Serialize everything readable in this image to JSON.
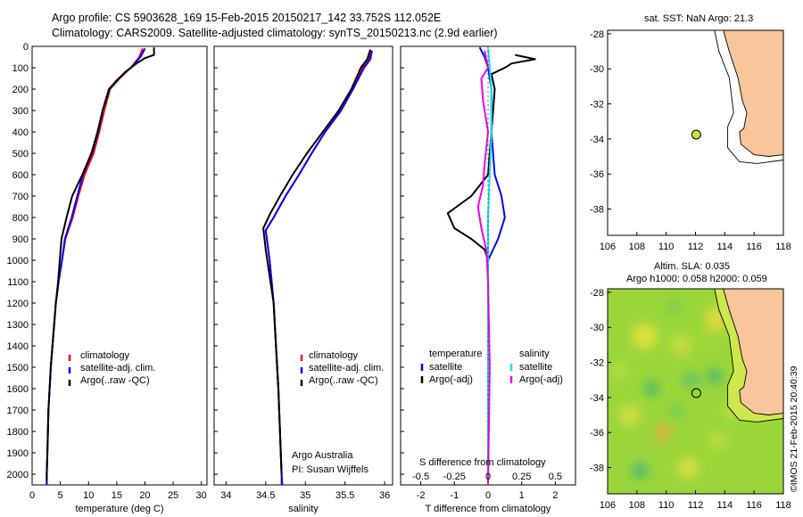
{
  "header": {
    "line1": "Argo profile: CS 5903628_169 15-Feb-2015 20150217_142 33.752S 112.052E",
    "line2": "Climatology: CARS2009. Satellite-adjusted climatology: synTS_20150213.nc (2.9d earlier)"
  },
  "colors": {
    "climatology": "#ff0000",
    "satellite": "#0000ff",
    "argo": "#000000",
    "satellite_diff": "#00e5ee",
    "argo_sal_diff": "#ee00ee",
    "land": "#f9c59a",
    "sst_marker": "#c8e635"
  },
  "chart_data": [
    {
      "id": "temperature",
      "type": "line",
      "xlabel": "temperature (deg C)",
      "xlim": [
        0,
        31
      ],
      "ylim": [
        2050,
        0
      ],
      "xticks": [
        "0",
        "5",
        "10",
        "15",
        "20",
        "25",
        "30"
      ],
      "yticks": [
        "0",
        "100",
        "200",
        "300",
        "400",
        "500",
        "600",
        "700",
        "800",
        "900",
        "1000",
        "1100",
        "1200",
        "1300",
        "1400",
        "1500",
        "1600",
        "1700",
        "1800",
        "1900",
        "2000"
      ],
      "legend": [
        "climatology",
        "satellite-adj. clim.",
        "Argo(..raw -QC)"
      ],
      "series": [
        {
          "name": "climatology",
          "color": "#ff0000",
          "points": [
            [
              19.6,
              10
            ],
            [
              19.0,
              50
            ],
            [
              17.5,
              100
            ],
            [
              15.5,
              150
            ],
            [
              13.8,
              200
            ],
            [
              12.8,
              300
            ],
            [
              11.9,
              400
            ],
            [
              10.9,
              500
            ],
            [
              9.3,
              600
            ],
            [
              8.2,
              700
            ],
            [
              7.2,
              800
            ],
            [
              5.9,
              900
            ],
            [
              5.3,
              1000
            ],
            [
              4.7,
              1100
            ],
            [
              4.2,
              1200
            ],
            [
              3.9,
              1300
            ],
            [
              3.6,
              1400
            ],
            [
              3.3,
              1500
            ],
            [
              3.1,
              1600
            ],
            [
              2.9,
              1700
            ],
            [
              2.8,
              1800
            ],
            [
              2.7,
              1900
            ],
            [
              2.6,
              2000
            ],
            [
              2.6,
              2050
            ]
          ]
        },
        {
          "name": "satellite-adj. clim.",
          "color": "#0000ff",
          "points": [
            [
              20.0,
              10
            ],
            [
              19.2,
              50
            ],
            [
              17.5,
              100
            ],
            [
              15.3,
              150
            ],
            [
              13.6,
              200
            ],
            [
              12.5,
              300
            ],
            [
              11.7,
              400
            ],
            [
              10.6,
              500
            ],
            [
              9.0,
              600
            ],
            [
              8.0,
              700
            ],
            [
              7.0,
              800
            ],
            [
              5.8,
              900
            ],
            [
              5.3,
              1000
            ],
            [
              4.7,
              1100
            ],
            [
              4.2,
              1200
            ],
            [
              3.9,
              1300
            ],
            [
              3.6,
              1400
            ],
            [
              3.3,
              1500
            ],
            [
              3.1,
              1600
            ],
            [
              2.9,
              1700
            ],
            [
              2.8,
              1800
            ],
            [
              2.7,
              1900
            ],
            [
              2.6,
              2000
            ],
            [
              2.6,
              2050
            ]
          ]
        },
        {
          "name": "Argo(..raw -QC)",
          "color": "#000000",
          "points": [
            [
              21.6,
              5
            ],
            [
              21.6,
              40
            ],
            [
              20.0,
              55
            ],
            [
              18.5,
              80
            ],
            [
              16.5,
              120
            ],
            [
              14.7,
              170
            ],
            [
              13.7,
              200
            ],
            [
              12.5,
              300
            ],
            [
              11.6,
              400
            ],
            [
              10.5,
              500
            ],
            [
              8.9,
              600
            ],
            [
              7.1,
              700
            ],
            [
              6.1,
              800
            ],
            [
              5.2,
              900
            ],
            [
              4.9,
              1000
            ],
            [
              4.6,
              1100
            ],
            [
              4.2,
              1200
            ],
            [
              3.9,
              1300
            ],
            [
              3.6,
              1400
            ],
            [
              3.3,
              1500
            ],
            [
              3.1,
              1600
            ],
            [
              2.9,
              1700
            ],
            [
              2.8,
              1800
            ],
            [
              2.7,
              1900
            ],
            [
              2.6,
              2000
            ],
            [
              2.6,
              2030
            ]
          ]
        }
      ]
    },
    {
      "id": "salinity",
      "type": "line",
      "xlabel": "salinity",
      "xlim": [
        33.85,
        36.1
      ],
      "ylim": [
        2050,
        0
      ],
      "xticks": [
        "34",
        "34.5",
        "35",
        "35.5",
        "36"
      ],
      "legend": [
        "climatology",
        "satellite-adj. clim.",
        "Argo(..raw -QC)"
      ],
      "annotation": [
        "Argo Australia",
        "PI: Susan Wijffels"
      ],
      "series": [
        {
          "name": "climatology",
          "color": "#ff0000",
          "points": [
            [
              35.82,
              20
            ],
            [
              35.8,
              60
            ],
            [
              35.72,
              100
            ],
            [
              35.6,
              200
            ],
            [
              35.45,
              300
            ],
            [
              35.25,
              400
            ],
            [
              35.08,
              500
            ],
            [
              34.92,
              600
            ],
            [
              34.75,
              700
            ],
            [
              34.6,
              800
            ],
            [
              34.5,
              860
            ],
            [
              34.55,
              1000
            ],
            [
              34.6,
              1200
            ],
            [
              34.63,
              1400
            ],
            [
              34.66,
              1600
            ],
            [
              34.68,
              1800
            ],
            [
              34.7,
              2000
            ],
            [
              34.7,
              2050
            ]
          ]
        },
        {
          "name": "satellite-adj. clim.",
          "color": "#0000ff",
          "points": [
            [
              35.84,
              20
            ],
            [
              35.82,
              60
            ],
            [
              35.74,
              100
            ],
            [
              35.6,
              200
            ],
            [
              35.45,
              300
            ],
            [
              35.25,
              400
            ],
            [
              35.08,
              500
            ],
            [
              34.92,
              600
            ],
            [
              34.75,
              700
            ],
            [
              34.6,
              800
            ],
            [
              34.5,
              860
            ],
            [
              34.55,
              1000
            ],
            [
              34.6,
              1200
            ],
            [
              34.63,
              1400
            ],
            [
              34.66,
              1600
            ],
            [
              34.68,
              1800
            ],
            [
              34.7,
              2000
            ],
            [
              34.71,
              2050
            ]
          ]
        },
        {
          "name": "Argo(..raw -QC)",
          "color": "#000000",
          "points": [
            [
              35.82,
              15
            ],
            [
              35.78,
              60
            ],
            [
              35.7,
              100
            ],
            [
              35.58,
              200
            ],
            [
              35.42,
              300
            ],
            [
              35.22,
              400
            ],
            [
              35.02,
              500
            ],
            [
              34.84,
              600
            ],
            [
              34.68,
              700
            ],
            [
              34.56,
              780
            ],
            [
              34.47,
              850
            ],
            [
              34.5,
              950
            ],
            [
              34.56,
              1100
            ],
            [
              34.6,
              1200
            ],
            [
              34.63,
              1400
            ],
            [
              34.66,
              1600
            ],
            [
              34.68,
              1800
            ],
            [
              34.7,
              2000
            ]
          ]
        }
      ]
    },
    {
      "id": "difference",
      "type": "line",
      "xlabel": "T difference from climatology",
      "xlabel2": "S difference from climatology",
      "xlim": [
        -2.6,
        2.6
      ],
      "ylim": [
        2050,
        0
      ],
      "xticks": [
        "-2",
        "-1",
        "0",
        "1",
        "2"
      ],
      "xticks2": [
        "-0.5",
        "-0.25",
        "0",
        "0.25",
        "0.5"
      ],
      "legend_headers": [
        "temperature",
        "salinity"
      ],
      "legend_left": [
        "satellite",
        "Argo(-adj)"
      ],
      "legend_right": [
        "satellite",
        "Argo(-adj)"
      ],
      "series": [
        {
          "name": "temperature satellite",
          "color": "#0000ff",
          "points": [
            [
              -0.25,
              5
            ],
            [
              -0.1,
              50
            ],
            [
              0,
              100
            ],
            [
              0.1,
              200
            ],
            [
              0.1,
              400
            ],
            [
              0.2,
              600
            ],
            [
              0.4,
              700
            ],
            [
              0.5,
              800
            ],
            [
              0.3,
              900
            ],
            [
              0,
              1000
            ],
            [
              0,
              2050
            ]
          ]
        },
        {
          "name": "temperature Argo(-adj)",
          "color": "#000000",
          "points": [
            [
              0.8,
              40
            ],
            [
              1.4,
              60
            ],
            [
              0.7,
              80
            ],
            [
              0.5,
              100
            ],
            [
              0.1,
              130
            ],
            [
              0.2,
              200
            ],
            [
              0.1,
              400
            ],
            [
              0,
              600
            ],
            [
              -0.5,
              700
            ],
            [
              -1.2,
              780
            ],
            [
              -1.0,
              850
            ],
            [
              -0.5,
              900
            ],
            [
              -0.1,
              950
            ],
            [
              0,
              1000
            ],
            [
              0,
              2040
            ]
          ]
        },
        {
          "name": "salinity satellite",
          "color": "#00e5ee",
          "points": [
            [
              0.0,
              10
            ],
            [
              0.05,
              100
            ],
            [
              0.1,
              200
            ],
            [
              0.1,
              400
            ],
            [
              0.05,
              600
            ],
            [
              0,
              800
            ],
            [
              0,
              2050
            ]
          ]
        },
        {
          "name": "salinity Argo(-adj)",
          "color": "#ee00ee",
          "points": [
            [
              -0.1,
              20
            ],
            [
              0.0,
              100
            ],
            [
              -0.2,
              150
            ],
            [
              -0.15,
              250
            ],
            [
              0.0,
              400
            ],
            [
              -0.1,
              550
            ],
            [
              -0.15,
              650
            ],
            [
              -0.3,
              750
            ],
            [
              -0.2,
              850
            ],
            [
              -0.05,
              950
            ],
            [
              0,
              1100
            ],
            [
              0.05,
              1500
            ],
            [
              0,
              2050
            ]
          ]
        }
      ]
    }
  ],
  "map_sst": {
    "title": "sat. SST: NaN Argo: 21.3",
    "xticks": [
      "106",
      "108",
      "110",
      "112",
      "114",
      "116",
      "118"
    ],
    "yticks": [
      "-28",
      "-30",
      "-32",
      "-34",
      "-36",
      "-38"
    ],
    "xlim": [
      106,
      118
    ],
    "ylim": [
      -39.5,
      -27.8
    ],
    "argo_position": [
      112.052,
      -33.752
    ]
  },
  "map_sla": {
    "title1": "Altim. SLA: 0.035",
    "title2": "Argo h1000: 0.058 h2000: 0.059",
    "xticks": [
      "106",
      "108",
      "110",
      "112",
      "114",
      "116",
      "118"
    ],
    "yticks": [
      "-28",
      "-30",
      "-32",
      "-34",
      "-36",
      "-38"
    ],
    "xlim": [
      106,
      118
    ],
    "ylim": [
      -39.5,
      -27.8
    ],
    "argo_position": [
      112.052,
      -33.752
    ]
  },
  "credit": "©IMOS 21-Feb-2015 20:40:39"
}
